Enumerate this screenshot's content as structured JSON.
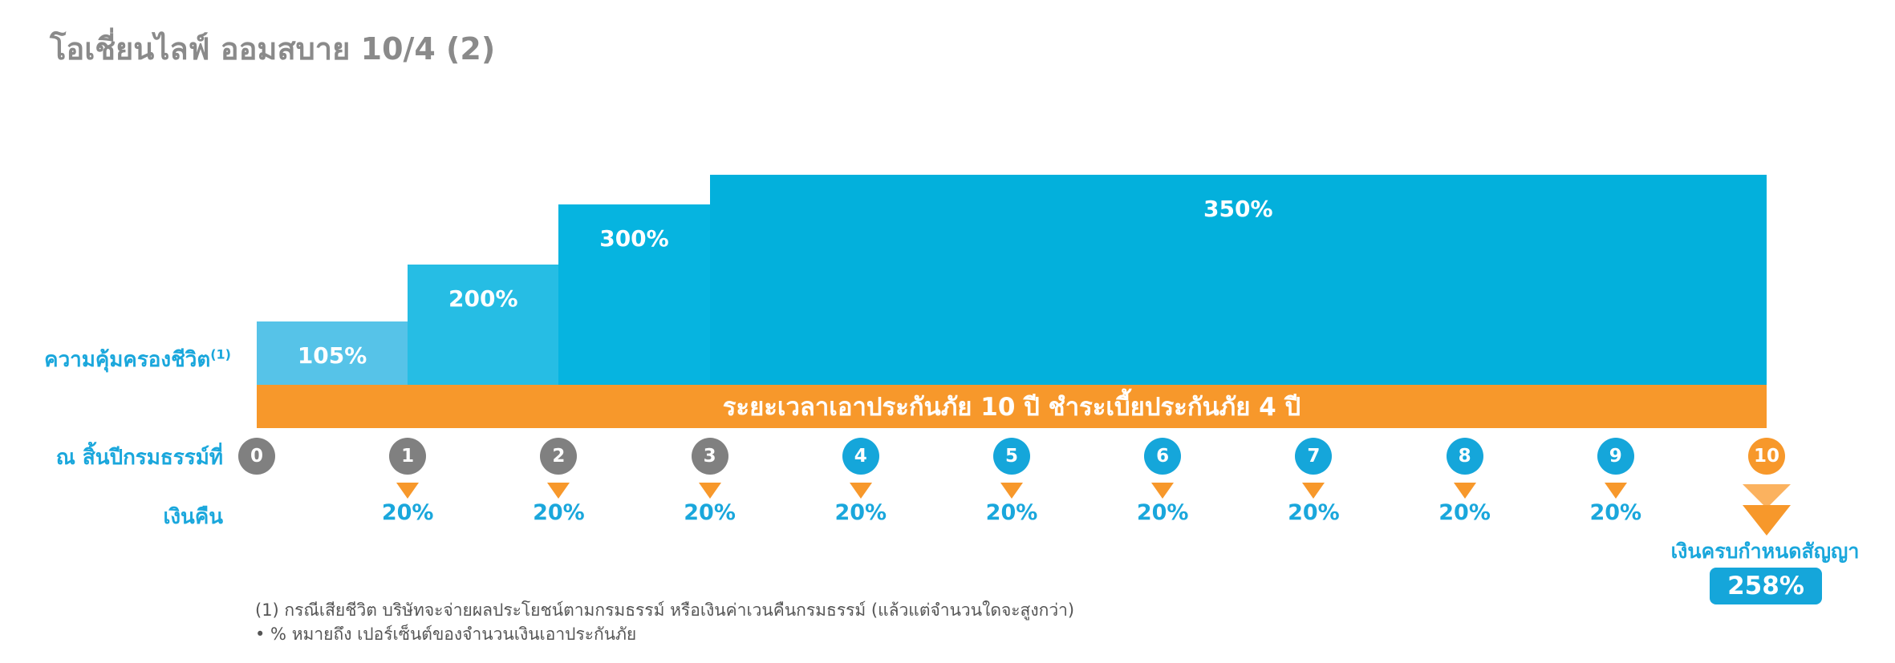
{
  "title": "โอเชี่ยนไลฟ์ ออมสบาย 10/4 (2)",
  "chart_data": {
    "type": "bar",
    "coverage_label": "ความคุ้มครองชีวิต",
    "coverage_superscript": "(1)",
    "coverage_steps": [
      {
        "from_year": 0,
        "to_year": 1,
        "value": 105,
        "label": "105%",
        "color": "#56c3e8"
      },
      {
        "from_year": 1,
        "to_year": 2,
        "value": 200,
        "label": "200%",
        "color": "#26bde4"
      },
      {
        "from_year": 2,
        "to_year": 3,
        "value": 300,
        "label": "300%",
        "color": "#06b4e0"
      },
      {
        "from_year": 3,
        "to_year": 10,
        "value": 350,
        "label": "350%",
        "color": "#03b0dc"
      }
    ],
    "period_banner": "ระยะเวลาเอาประกันภัย 10 ปี ชำระเบี้ยประกันภัย 4 ปี",
    "year_row_label": "ณ สิ้นปีกรมธรรม์ที่",
    "years": [
      {
        "label": "0",
        "color": "#808080"
      },
      {
        "label": "1",
        "color": "#808080"
      },
      {
        "label": "2",
        "color": "#808080"
      },
      {
        "label": "3",
        "color": "#808080"
      },
      {
        "label": "4",
        "color": "#15a6da"
      },
      {
        "label": "5",
        "color": "#15a6da"
      },
      {
        "label": "6",
        "color": "#15a6da"
      },
      {
        "label": "7",
        "color": "#15a6da"
      },
      {
        "label": "8",
        "color": "#15a6da"
      },
      {
        "label": "9",
        "color": "#15a6da"
      },
      {
        "label": "10",
        "color": "#f7982b"
      }
    ],
    "cashback_label": "เงินคืน",
    "cashback": [
      {
        "year": 1,
        "value": 20,
        "label": "20%"
      },
      {
        "year": 2,
        "value": 20,
        "label": "20%"
      },
      {
        "year": 3,
        "value": 20,
        "label": "20%"
      },
      {
        "year": 4,
        "value": 20,
        "label": "20%"
      },
      {
        "year": 5,
        "value": 20,
        "label": "20%"
      },
      {
        "year": 6,
        "value": 20,
        "label": "20%"
      },
      {
        "year": 7,
        "value": 20,
        "label": "20%"
      },
      {
        "year": 8,
        "value": 20,
        "label": "20%"
      },
      {
        "year": 9,
        "value": 20,
        "label": "20%"
      }
    ],
    "maturity": {
      "year": 10,
      "label": "เงินครบกำหนดสัญญา",
      "value": 258,
      "value_label": "258%"
    }
  },
  "colors": {
    "accent_blue": "#15a6da",
    "orange": "#f7982b",
    "gray": "#808080",
    "title_gray": "#8a8a8a"
  },
  "notes": [
    "(1)  กรณีเสียชีวิต บริษัทจะจ่ายผลประโยชน์ตามกรมธรรม์ หรือเงินค่าเวนคืนกรมธรรม์ (แล้วแต่จำนวนใดจะสูงกว่า)",
    "• % หมายถึง เปอร์เซ็นต์ของจำนวนเงินเอาประกันภัย"
  ]
}
